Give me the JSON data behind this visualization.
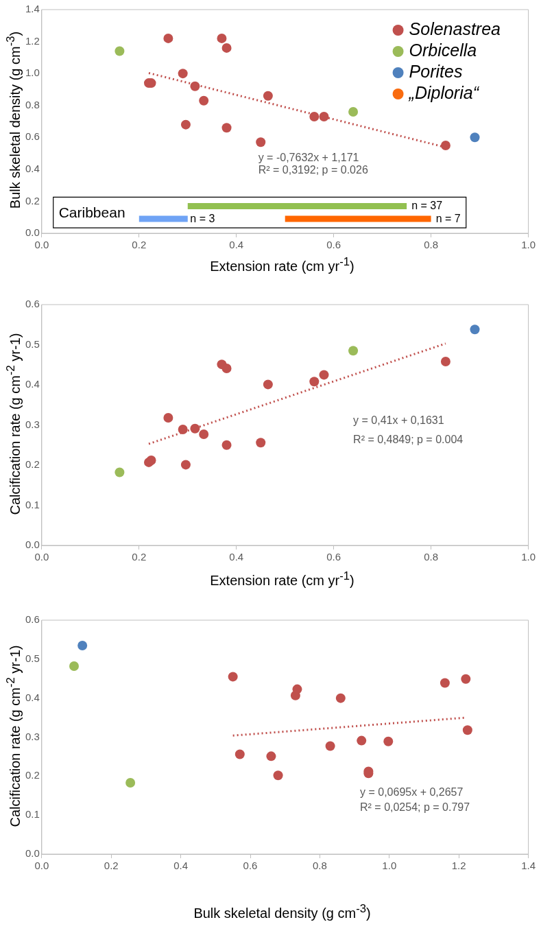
{
  "chart_data": [
    {
      "type": "scatter",
      "xlabel": "Extension rate (cm yr$^{-1}$)",
      "ylabel": "Bulk skeletal density (g cm$^{-3}$)",
      "legend": "top right",
      "marker": "circle",
      "grid": false,
      "xlim": [
        0,
        1.0
      ],
      "xticks": [
        {
          "value": 0,
          "label": "0.0"
        },
        {
          "value": 0.2,
          "label": "0.2"
        },
        {
          "value": 0.4,
          "label": "0.4"
        },
        {
          "value": 0.6,
          "label": "0.6"
        },
        {
          "value": 0.8,
          "label": "0.8"
        },
        {
          "value": 1.0,
          "label": "1.0"
        }
      ],
      "ylim": [
        0,
        1.4
      ],
      "yticks": [
        {
          "value": 0,
          "label": "0.0"
        },
        {
          "value": 0.2,
          "label": "0.2"
        },
        {
          "value": 0.4,
          "label": "0.4"
        },
        {
          "value": 0.6,
          "label": "0.6"
        },
        {
          "value": 0.8,
          "label": "0.8"
        },
        {
          "value": 1.0,
          "label": "1.0"
        },
        {
          "value": 1.2,
          "label": "1.2"
        },
        {
          "value": 1.4,
          "label": "1.4"
        }
      ],
      "series": [
        {
          "name": "Solenastrea",
          "color": "#c0504d",
          "x": [
            0.22,
            0.225,
            0.26,
            0.29,
            0.296,
            0.315,
            0.333,
            0.37,
            0.38,
            0.38,
            0.45,
            0.465,
            0.56,
            0.58,
            0.83
          ],
          "values": [
            0.94,
            0.94,
            1.22,
            1.0,
            0.68,
            0.92,
            0.83,
            1.22,
            1.16,
            0.66,
            0.57,
            0.86,
            0.73,
            0.73,
            0.55
          ]
        },
        {
          "name": "Orbicella",
          "color": "#9bbb59",
          "x": [
            0.16,
            0.64
          ],
          "values": [
            1.14,
            0.76
          ]
        },
        {
          "name": "Porites",
          "color": "#4f81bd",
          "x": [
            0.89
          ],
          "values": [
            0.6
          ]
        },
        {
          "name": "„Diploria“",
          "color": "#f96b0f"
        },
        {
          "type": "line",
          "color": "#c0504d",
          "line_style": "dotted",
          "marker": "none",
          "x": [
            0.22,
            0.83
          ],
          "values": [
            1.003,
            0.538
          ]
        },
        {
          "type": "line",
          "color": "#92c050",
          "line_style": "solid",
          "marker": "none",
          "x": [
            0.3,
            0.75
          ],
          "values": [
            0.17,
            0.17
          ]
        },
        {
          "type": "line",
          "color": "#6fa3f5",
          "line_style": "solid",
          "marker": "none",
          "x": [
            0.2,
            0.3
          ],
          "values": [
            0.09,
            0.09
          ]
        },
        {
          "type": "line",
          "color": "#ff6600",
          "line_style": "solid",
          "marker": "none",
          "x": [
            0.5,
            0.8
          ],
          "values": [
            0.09,
            0.09
          ]
        }
      ],
      "annotations": [
        "y = -0,7632x + 1,171",
        "R² = 0,3192; p = 0.026",
        "Caribbean",
        "n = 37",
        "n = 3",
        "n = 7"
      ]
    },
    {
      "type": "scatter",
      "xlabel": "Extension rate (cm yr$^{-1}$)",
      "ylabel": "Calcification rate (g cm$^{-2}$ yr-1)",
      "marker": "circle",
      "grid": false,
      "xlim": [
        0,
        1.0
      ],
      "xticks": [
        {
          "value": 0,
          "label": "0.0"
        },
        {
          "value": 0.2,
          "label": "0.2"
        },
        {
          "value": 0.4,
          "label": "0.4"
        },
        {
          "value": 0.6,
          "label": "0.6"
        },
        {
          "value": 0.8,
          "label": "0.8"
        },
        {
          "value": 1.0,
          "label": "1.0"
        }
      ],
      "ylim": [
        0,
        0.6
      ],
      "yticks": [
        {
          "value": 0,
          "label": "0.0"
        },
        {
          "value": 0.1,
          "label": "0.1"
        },
        {
          "value": 0.2,
          "label": "0.2"
        },
        {
          "value": 0.3,
          "label": "0.3"
        },
        {
          "value": 0.4,
          "label": "0.4"
        },
        {
          "value": 0.5,
          "label": "0.5"
        },
        {
          "value": 0.6,
          "label": "0.6"
        }
      ],
      "series": [
        {
          "color": "#c0504d",
          "x": [
            0.22,
            0.225,
            0.26,
            0.29,
            0.296,
            0.315,
            0.333,
            0.37,
            0.38,
            0.38,
            0.45,
            0.465,
            0.56,
            0.58,
            0.83
          ],
          "values": [
            0.207,
            0.212,
            0.318,
            0.289,
            0.201,
            0.291,
            0.277,
            0.451,
            0.441,
            0.25,
            0.256,
            0.401,
            0.408,
            0.425,
            0.458
          ]
        },
        {
          "color": "#9bbb59",
          "x": [
            0.16,
            0.64
          ],
          "values": [
            0.182,
            0.485
          ]
        },
        {
          "color": "#4f81bd",
          "x": [
            0.89
          ],
          "values": [
            0.538
          ]
        },
        {
          "type": "line",
          "color": "#c0504d",
          "line_style": "dotted",
          "marker": "none",
          "x": [
            0.22,
            0.83
          ],
          "values": [
            0.253,
            0.503
          ]
        }
      ],
      "annotations": [
        "y = 0,41x + 0,1631",
        "R² = 0,4849; p = 0.004"
      ]
    },
    {
      "type": "scatter",
      "xlabel": "Bulk skeletal density (g cm$^{-3}$)",
      "ylabel": "Calcification rate (g cm$^{-2}$ yr-1)",
      "marker": "circle",
      "grid": false,
      "xlim": [
        0,
        1.4
      ],
      "xticks": [
        {
          "value": 0,
          "label": "0.0"
        },
        {
          "value": 0.2,
          "label": "0.2"
        },
        {
          "value": 0.4,
          "label": "0.4"
        },
        {
          "value": 0.6,
          "label": "0.6"
        },
        {
          "value": 0.8,
          "label": "0.8"
        },
        {
          "value": 1.0,
          "label": "1.0"
        },
        {
          "value": 1.2,
          "label": "1.2"
        },
        {
          "value": 1.4,
          "label": "1.4"
        }
      ],
      "ylim": [
        0,
        0.6
      ],
      "yticks": [
        {
          "value": 0,
          "label": "0.0"
        },
        {
          "value": 0.1,
          "label": "0.1"
        },
        {
          "value": 0.2,
          "label": "0.2"
        },
        {
          "value": 0.3,
          "label": "0.3"
        },
        {
          "value": 0.4,
          "label": "0.4"
        },
        {
          "value": 0.5,
          "label": "0.5"
        },
        {
          "value": 0.6,
          "label": "0.6"
        }
      ],
      "series": [
        {
          "color": "#c0504d",
          "x": [
            0.55,
            0.57,
            0.66,
            0.68,
            0.73,
            0.735,
            0.83,
            0.86,
            0.92,
            0.94,
            0.94,
            0.997,
            1.16,
            1.22,
            1.225
          ],
          "values": [
            0.455,
            0.256,
            0.251,
            0.202,
            0.407,
            0.423,
            0.277,
            0.4,
            0.291,
            0.207,
            0.212,
            0.289,
            0.439,
            0.449,
            0.318
          ]
        },
        {
          "color": "#9bbb59",
          "x": [
            0.093,
            0.255
          ],
          "values": [
            0.482,
            0.183
          ]
        },
        {
          "color": "#4f81bd",
          "x": [
            0.117
          ],
          "values": [
            0.535
          ]
        },
        {
          "type": "line",
          "color": "#c0504d",
          "line_style": "dotted",
          "marker": "none",
          "x": [
            0.55,
            1.22
          ],
          "values": [
            0.304,
            0.35
          ]
        }
      ],
      "annotations": [
        "y = 0,0695x + 0,2657",
        "R² = 0,0254; p = 0.797"
      ]
    }
  ]
}
